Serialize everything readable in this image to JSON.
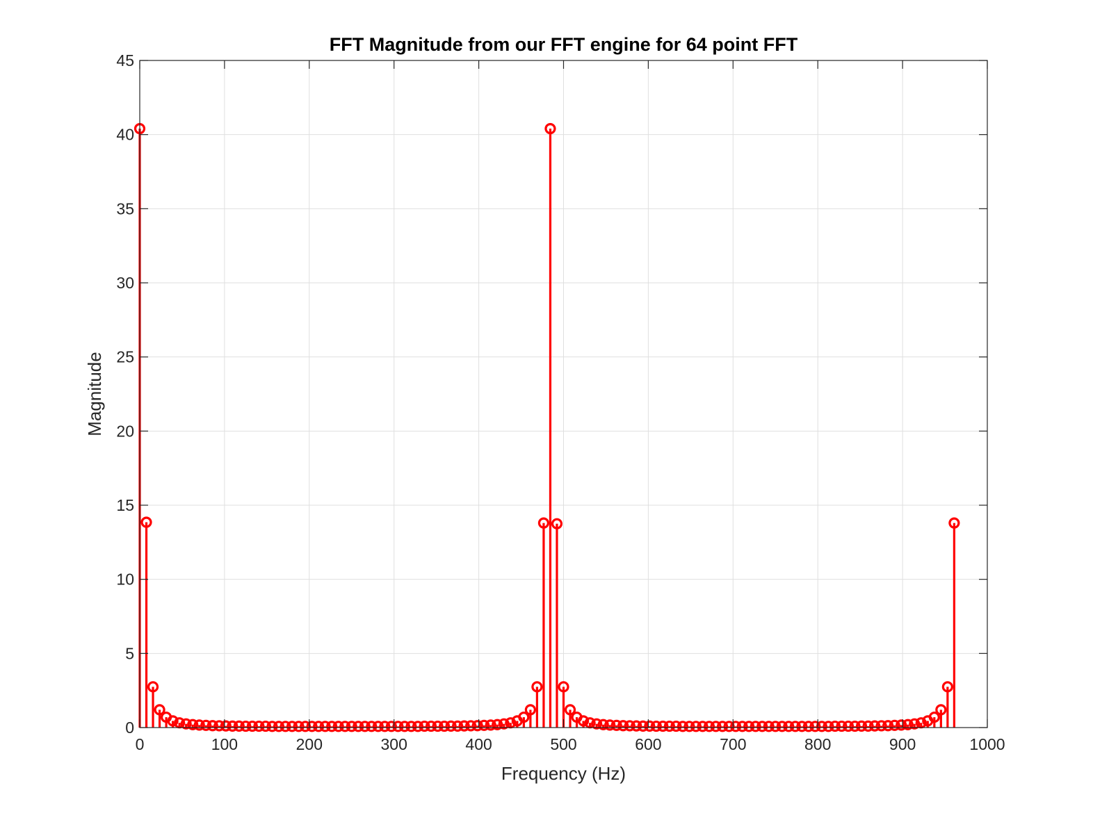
{
  "chart_data": {
    "type": "stem",
    "title": "FFT Magnitude from our FFT engine for 64 point FFT",
    "xlabel": "Frequency (Hz)",
    "ylabel": "Magnitude",
    "xlim": [
      0,
      1000
    ],
    "ylim": [
      0,
      45
    ],
    "xticks": [
      0,
      100,
      200,
      300,
      400,
      500,
      600,
      700,
      800,
      900,
      1000
    ],
    "yticks": [
      0,
      5,
      10,
      15,
      20,
      25,
      30,
      35,
      40,
      45
    ],
    "grid": true,
    "color": "#ff0000",
    "x_step": 7.8125,
    "values": [
      40.4,
      13.85,
      2.75,
      1.2,
      0.7,
      0.45,
      0.32,
      0.25,
      0.2,
      0.17,
      0.15,
      0.13,
      0.12,
      0.11,
      0.1,
      0.1,
      0.09,
      0.09,
      0.09,
      0.09,
      0.08,
      0.08,
      0.08,
      0.08,
      0.08,
      0.08,
      0.08,
      0.08,
      0.08,
      0.08,
      0.08,
      0.08,
      0.08,
      0.08,
      0.08,
      0.08,
      0.08,
      0.08,
      0.08,
      0.08,
      0.08,
      0.08,
      0.08,
      0.09,
      0.09,
      0.09,
      0.09,
      0.1,
      0.1,
      0.11,
      0.12,
      0.13,
      0.15,
      0.17,
      0.2,
      0.25,
      0.32,
      0.45,
      0.7,
      1.2,
      2.75,
      13.8,
      40.4,
      13.75,
      2.75,
      1.2,
      0.7,
      0.45,
      0.32,
      0.25,
      0.2,
      0.17,
      0.15,
      0.13,
      0.12,
      0.11,
      0.1,
      0.1,
      0.09,
      0.09,
      0.09,
      0.09,
      0.08,
      0.08,
      0.08,
      0.08,
      0.08,
      0.08,
      0.08,
      0.08,
      0.08,
      0.08,
      0.08,
      0.08,
      0.08,
      0.08,
      0.08,
      0.08,
      0.08,
      0.08,
      0.08,
      0.08,
      0.08,
      0.08,
      0.08,
      0.09,
      0.09,
      0.09,
      0.09,
      0.1,
      0.1,
      0.11,
      0.12,
      0.13,
      0.15,
      0.17,
      0.2,
      0.25,
      0.32,
      0.45,
      0.7,
      1.2,
      2.75,
      13.8
    ]
  }
}
